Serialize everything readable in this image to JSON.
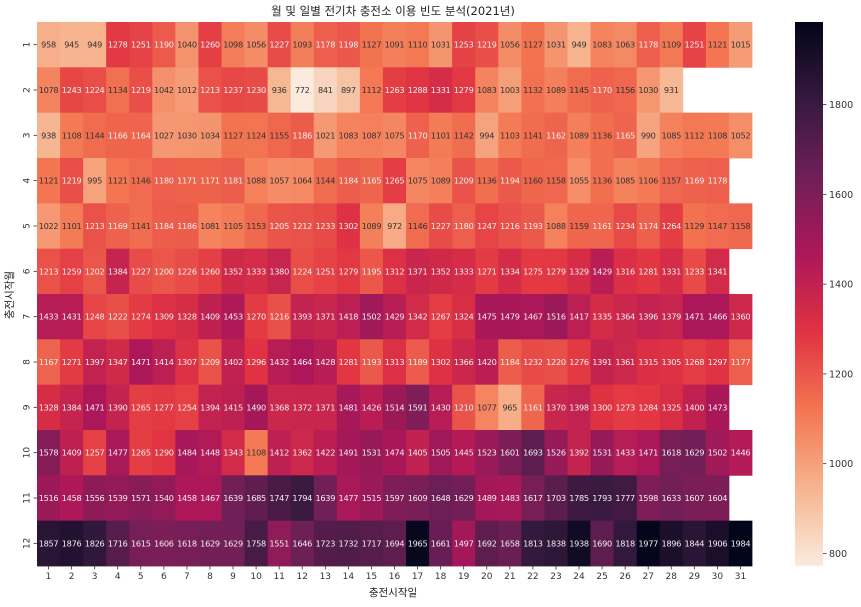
{
  "chart_data": {
    "type": "heatmap",
    "title": "월 및 일별 전기차 충전소 이용 빈도 분석(2021년)",
    "xlabel": "충전시작일",
    "ylabel": "충전시작월",
    "x_categories": [
      "1",
      "2",
      "3",
      "4",
      "5",
      "6",
      "7",
      "8",
      "9",
      "10",
      "11",
      "12",
      "13",
      "14",
      "15",
      "16",
      "17",
      "18",
      "19",
      "20",
      "21",
      "22",
      "23",
      "24",
      "25",
      "26",
      "27",
      "28",
      "29",
      "30",
      "31"
    ],
    "y_categories": [
      "1",
      "2",
      "3",
      "4",
      "5",
      "6",
      "7",
      "8",
      "9",
      "10",
      "11",
      "12"
    ],
    "values": [
      [
        958,
        945,
        949,
        1278,
        1251,
        1190,
        1040,
        1260,
        1098,
        1056,
        1227,
        1093,
        1178,
        1198,
        1127,
        1091,
        1110,
        1031,
        1253,
        1219,
        1056,
        1127,
        1031,
        949,
        1083,
        1063,
        1178,
        1109,
        1251,
        1121,
        1015
      ],
      [
        1078,
        1243,
        1224,
        1134,
        1219,
        1042,
        1012,
        1213,
        1237,
        1230,
        936,
        772,
        841,
        897,
        1112,
        1263,
        1288,
        1331,
        1279,
        1083,
        1003,
        1132,
        1089,
        1145,
        1170,
        1156,
        1030,
        931,
        null,
        null,
        null
      ],
      [
        938,
        1108,
        1144,
        1166,
        1164,
        1027,
        1030,
        1034,
        1127,
        1124,
        1155,
        1186,
        1021,
        1083,
        1087,
        1075,
        1170,
        1101,
        1142,
        994,
        1103,
        1141,
        1162,
        1089,
        1136,
        1165,
        990,
        1085,
        1112,
        1108,
        1052
      ],
      [
        1121,
        1219,
        995,
        1121,
        1146,
        1180,
        1171,
        1171,
        1181,
        1088,
        1057,
        1064,
        1144,
        1184,
        1165,
        1265,
        1075,
        1089,
        1209,
        1136,
        1194,
        1160,
        1158,
        1055,
        1136,
        1085,
        1106,
        1157,
        1169,
        1178,
        null
      ],
      [
        1022,
        1101,
        1213,
        1169,
        1141,
        1184,
        1186,
        1081,
        1105,
        1153,
        1205,
        1212,
        1233,
        1302,
        1089,
        972,
        1146,
        1227,
        1180,
        1247,
        1216,
        1193,
        1088,
        1159,
        1161,
        1234,
        1174,
        1264,
        1129,
        1147,
        1158
      ],
      [
        1213,
        1259,
        1202,
        1384,
        1227,
        1200,
        1226,
        1260,
        1352,
        1333,
        1380,
        1224,
        1251,
        1279,
        1195,
        1312,
        1371,
        1352,
        1333,
        1271,
        1334,
        1275,
        1279,
        1329,
        1429,
        1316,
        1281,
        1331,
        1233,
        1341,
        null
      ],
      [
        1433,
        1431,
        1248,
        1222,
        1274,
        1309,
        1328,
        1409,
        1453,
        1270,
        1216,
        1393,
        1371,
        1418,
        1502,
        1429,
        1342,
        1267,
        1324,
        1475,
        1479,
        1467,
        1516,
        1417,
        1335,
        1364,
        1396,
        1379,
        1471,
        1466,
        1360
      ],
      [
        1167,
        1271,
        1397,
        1347,
        1471,
        1414,
        1307,
        1209,
        1402,
        1296,
        1432,
        1464,
        1428,
        1281,
        1193,
        1313,
        1189,
        1302,
        1366,
        1420,
        1184,
        1232,
        1220,
        1276,
        1391,
        1361,
        1315,
        1305,
        1268,
        1297,
        1177
      ],
      [
        1328,
        1384,
        1471,
        1390,
        1265,
        1277,
        1254,
        1394,
        1415,
        1490,
        1368,
        1372,
        1371,
        1481,
        1426,
        1514,
        1591,
        1430,
        1210,
        1077,
        965,
        1161,
        1370,
        1398,
        1300,
        1273,
        1284,
        1325,
        1400,
        1473,
        null
      ],
      [
        1578,
        1409,
        1257,
        1477,
        1265,
        1290,
        1484,
        1448,
        1343,
        1108,
        1412,
        1362,
        1422,
        1491,
        1531,
        1474,
        1405,
        1505,
        1445,
        1523,
        1601,
        1693,
        1526,
        1392,
        1531,
        1433,
        1471,
        1618,
        1629,
        1502,
        1446
      ],
      [
        1516,
        1458,
        1556,
        1539,
        1571,
        1540,
        1458,
        1467,
        1639,
        1685,
        1747,
        1794,
        1639,
        1477,
        1515,
        1597,
        1609,
        1648,
        1629,
        1489,
        1483,
        1617,
        1703,
        1785,
        1793,
        1777,
        1598,
        1633,
        1607,
        1604,
        null
      ],
      [
        1857,
        1876,
        1826,
        1716,
        1615,
        1606,
        1618,
        1629,
        1629,
        1758,
        1551,
        1646,
        1723,
        1732,
        1717,
        1694,
        1965,
        1661,
        1497,
        1692,
        1658,
        1813,
        1838,
        1938,
        1690,
        1818,
        1977,
        1896,
        1844,
        1906,
        1984
      ]
    ],
    "color_scale": {
      "ticks": [
        800,
        1000,
        1200,
        1400,
        1600,
        1800
      ],
      "range": [
        772,
        1984
      ],
      "colormap": "rocket_r",
      "colors": [
        "#faebdd",
        "#f6b48f",
        "#f37651",
        "#e13342",
        "#ad1759",
        "#701f57",
        "#35193e",
        "#03051a"
      ]
    },
    "grid": false
  }
}
